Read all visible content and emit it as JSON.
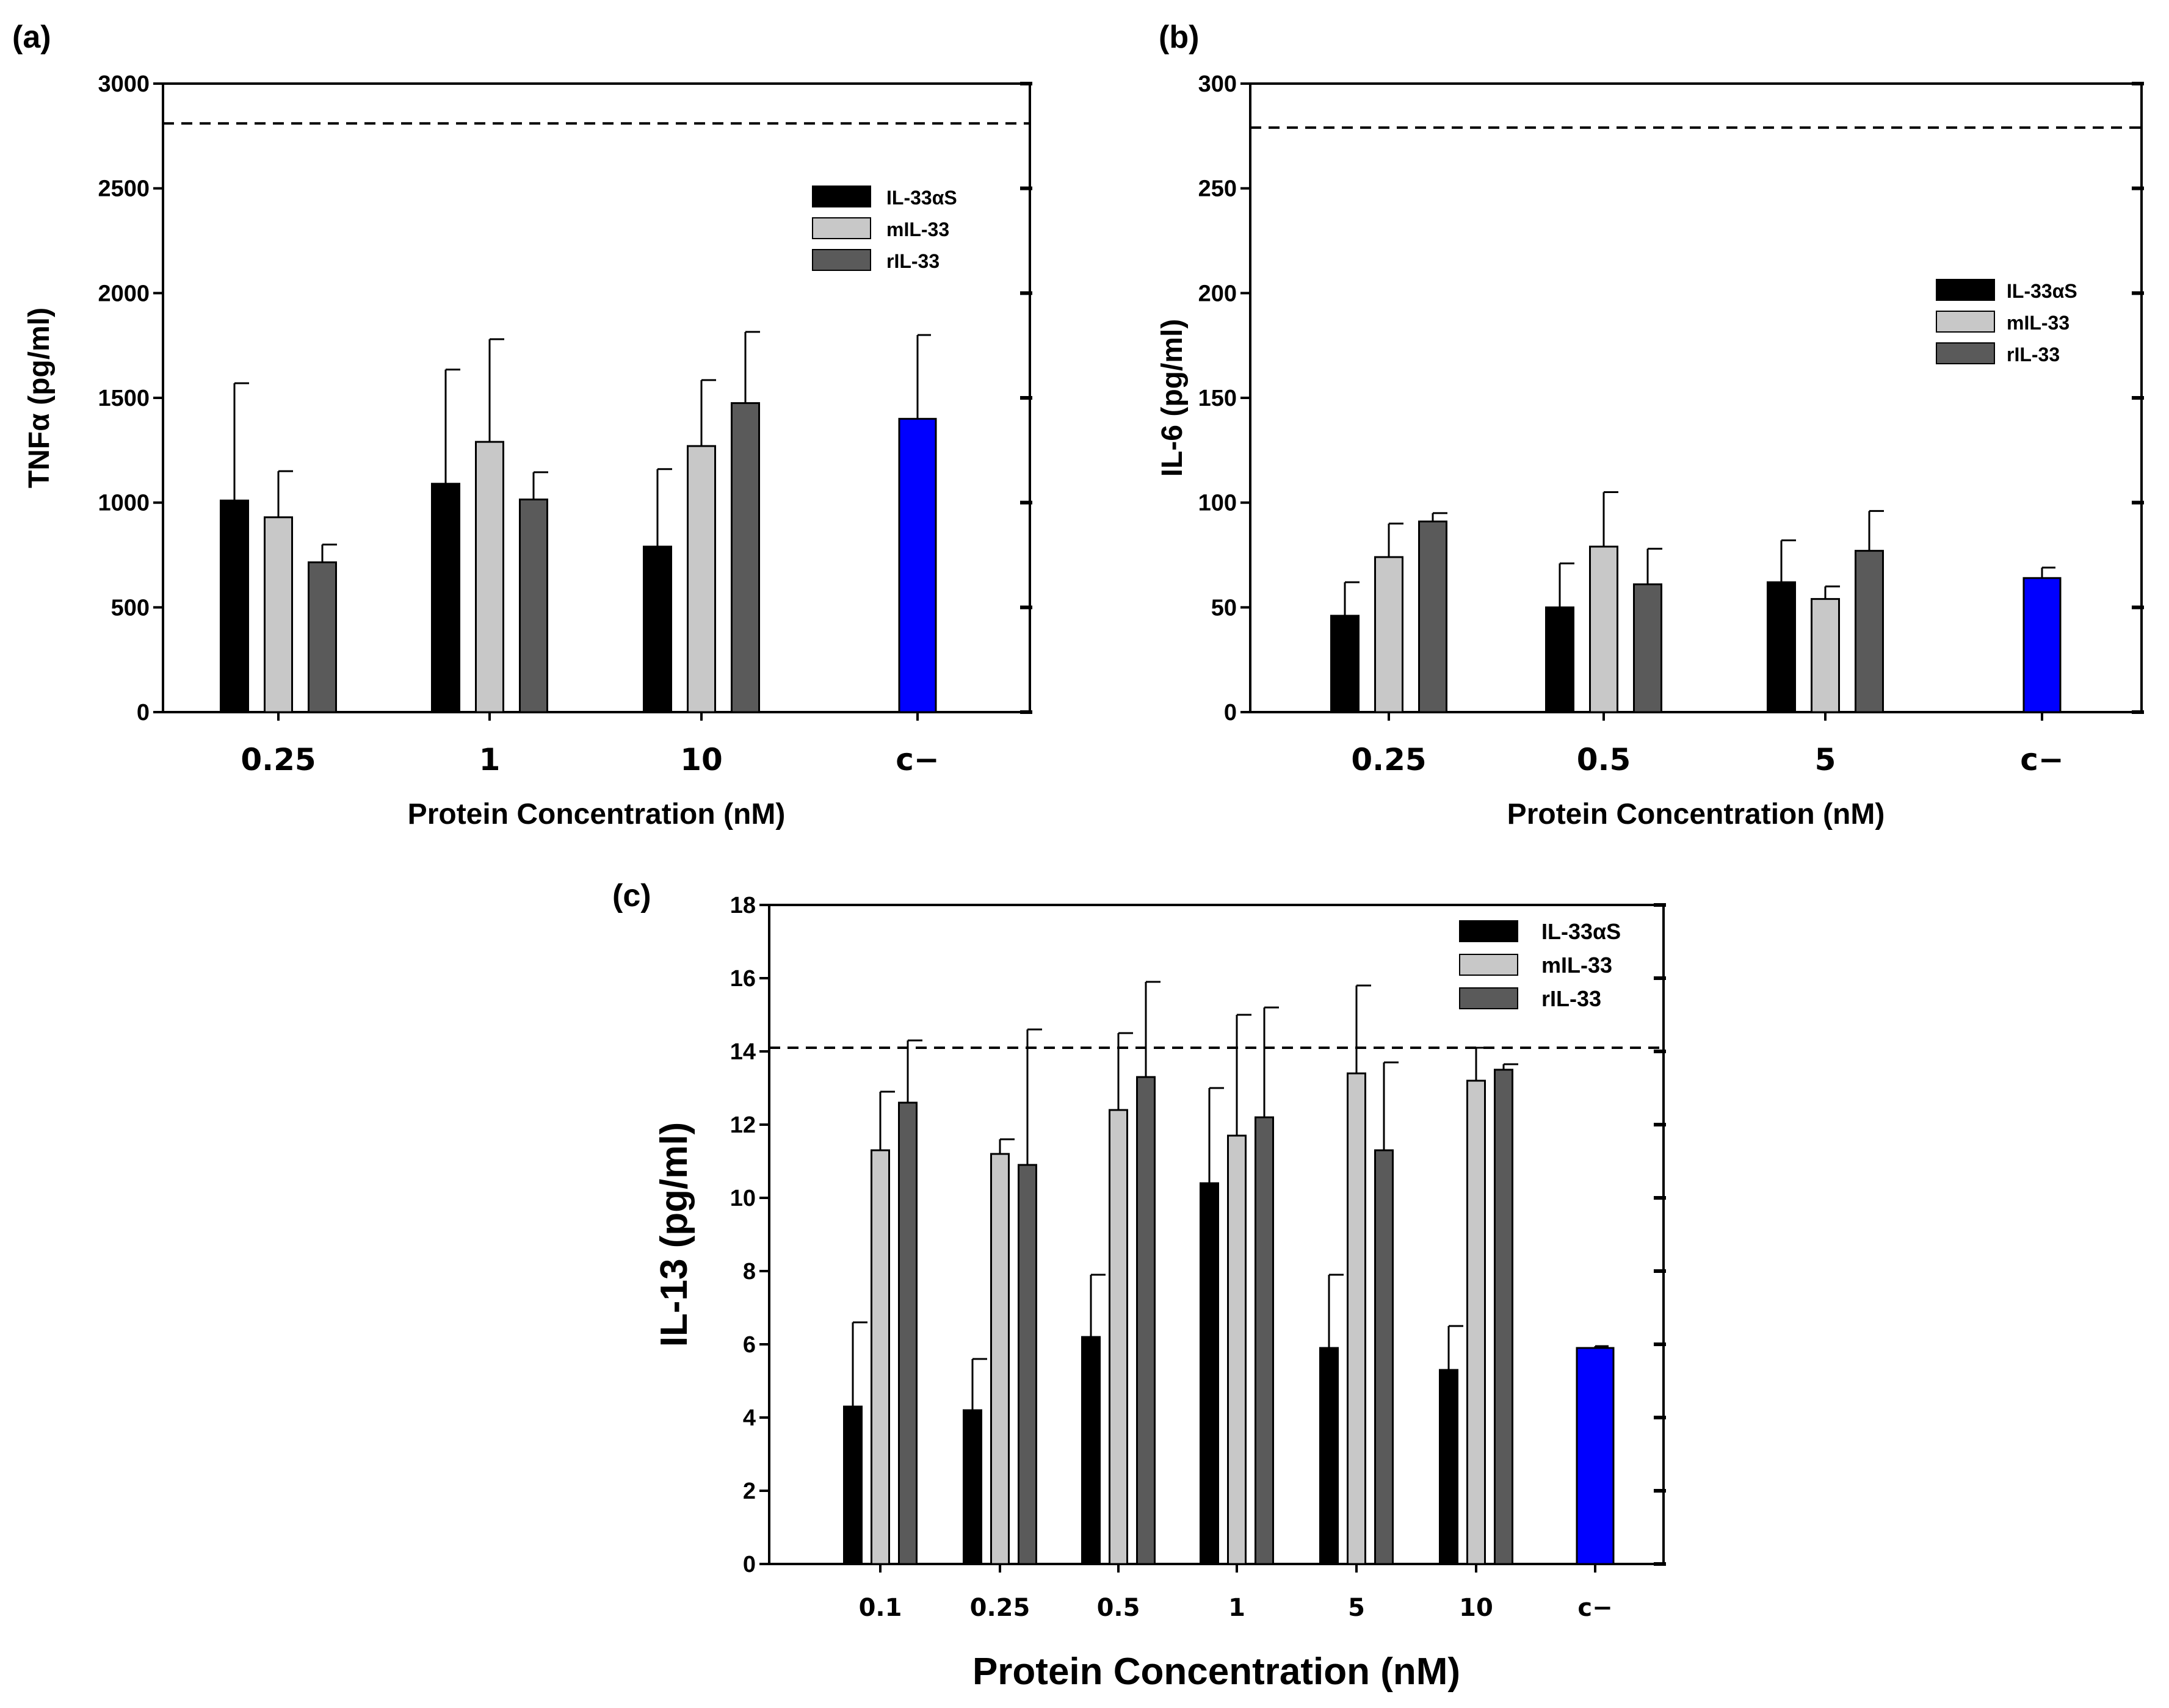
{
  "chart_data": [
    {
      "id": "a",
      "type": "bar",
      "panel_label": "(a)",
      "title": "",
      "xlabel": "Protein Concentration (nM)",
      "ylabel": "TNFα (pg/ml)",
      "ylim": [
        0,
        3000
      ],
      "yticks": [
        0,
        500,
        1000,
        1500,
        2000,
        2500,
        3000
      ],
      "reference_line": 2810,
      "categories": [
        "0.25",
        "1",
        "10",
        "c−"
      ],
      "series": [
        {
          "name": "IL-33αS",
          "color": "#000000",
          "values": [
            1010,
            1090,
            790,
            null
          ],
          "errors": [
            560,
            545,
            370,
            null
          ]
        },
        {
          "name": "mIL-33",
          "color": "#c8c8c8",
          "values": [
            930,
            1290,
            1270,
            null
          ],
          "errors": [
            220,
            490,
            315,
            null
          ]
        },
        {
          "name": "rIL-33",
          "color": "#5a5a5a",
          "values": [
            715,
            1015,
            1475,
            null
          ],
          "errors": [
            85,
            130,
            340,
            null
          ]
        }
      ],
      "control": {
        "value": 1400,
        "error": 400,
        "color": "#0000ff"
      },
      "legend": "top-right"
    },
    {
      "id": "b",
      "type": "bar",
      "panel_label": "(b)",
      "title": "",
      "xlabel": "Protein Concentration (nM)",
      "ylabel": "IL-6 (pg/ml)",
      "ylim": [
        0,
        300
      ],
      "yticks": [
        0,
        50,
        100,
        150,
        200,
        250,
        300
      ],
      "reference_line": 279,
      "categories": [
        "0.25",
        "0.5",
        "5",
        "c−"
      ],
      "series": [
        {
          "name": "IL-33αS",
          "color": "#000000",
          "values": [
            46,
            50,
            62,
            null
          ],
          "errors": [
            16,
            21,
            20,
            null
          ]
        },
        {
          "name": "mIL-33",
          "color": "#c8c8c8",
          "values": [
            74,
            79,
            54,
            null
          ],
          "errors": [
            16,
            26,
            6,
            null
          ]
        },
        {
          "name": "rIL-33",
          "color": "#5a5a5a",
          "values": [
            91,
            61,
            77,
            null
          ],
          "errors": [
            4,
            17,
            19,
            null
          ]
        }
      ],
      "control": {
        "value": 64,
        "error": 5,
        "color": "#0000ff"
      },
      "legend": "center-right"
    },
    {
      "id": "c",
      "type": "bar",
      "panel_label": "(c)",
      "title": "",
      "xlabel": "Protein Concentration (nM)",
      "ylabel": "IL-13 (pg/ml)",
      "ylim": [
        0,
        18
      ],
      "yticks": [
        0,
        2,
        4,
        6,
        8,
        10,
        12,
        14,
        16,
        18
      ],
      "reference_line": 14.1,
      "categories": [
        "0.1",
        "0.25",
        "0.5",
        "1",
        "5",
        "10",
        "c−"
      ],
      "series": [
        {
          "name": "IL-33αS",
          "color": "#000000",
          "values": [
            4.3,
            4.2,
            6.2,
            10.4,
            5.9,
            5.3,
            null
          ],
          "errors": [
            2.3,
            1.4,
            1.7,
            2.6,
            2.0,
            1.2,
            null
          ]
        },
        {
          "name": "mIL-33",
          "color": "#c8c8c8",
          "values": [
            11.3,
            11.2,
            12.4,
            11.7,
            13.4,
            13.2,
            null
          ],
          "errors": [
            1.6,
            0.4,
            2.1,
            3.3,
            2.4,
            0.9,
            null
          ]
        },
        {
          "name": "rIL-33",
          "color": "#5a5a5a",
          "values": [
            12.6,
            10.9,
            13.3,
            12.2,
            11.3,
            13.5,
            null
          ],
          "errors": [
            1.7,
            3.7,
            2.6,
            3.0,
            2.4,
            0.15,
            null
          ]
        }
      ],
      "control": {
        "value": 5.9,
        "error": 0.05,
        "color": "#0000ff"
      },
      "legend": "top-right"
    }
  ]
}
